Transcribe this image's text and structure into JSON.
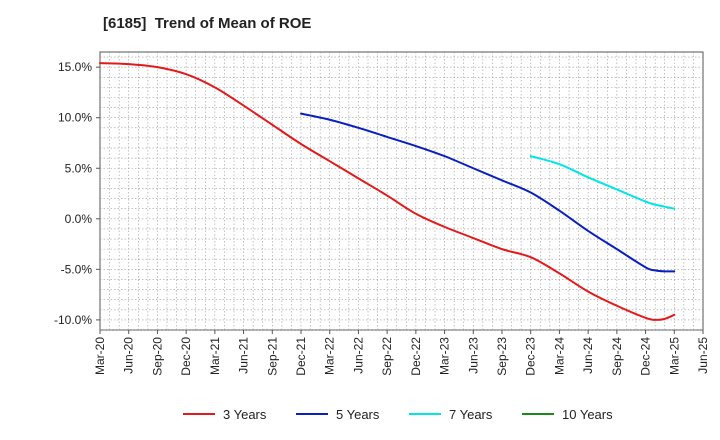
{
  "chart_data": {
    "type": "line",
    "title": "[6185]  Trend of Mean of ROE",
    "xlabel": "",
    "ylabel": "",
    "x_ticks": [
      "Mar-20",
      "Jun-20",
      "Sep-20",
      "Dec-20",
      "Mar-21",
      "Jun-21",
      "Sep-21",
      "Dec-21",
      "Mar-22",
      "Jun-22",
      "Sep-22",
      "Dec-22",
      "Mar-23",
      "Jun-23",
      "Sep-23",
      "Dec-23",
      "Mar-24",
      "Jun-24",
      "Sep-24",
      "Dec-24",
      "Mar-25",
      "Jun-25"
    ],
    "y_ticks": [
      -10,
      -5,
      0,
      5,
      10,
      15
    ],
    "y_tick_labels": [
      "-10.0%",
      "-5.0%",
      "0.0%",
      "5.0%",
      "10.0%",
      "15.0%"
    ],
    "ylim": [
      -11,
      16.5
    ],
    "grid": true,
    "legend_position": "bottom",
    "series": [
      {
        "name": "3 Years",
        "color": "#e31a1c",
        "x": [
          "Mar-20",
          "Jun-20",
          "Sep-20",
          "Dec-20",
          "Mar-21",
          "Jun-21",
          "Sep-21",
          "Dec-21",
          "Mar-22",
          "Jun-22",
          "Sep-22",
          "Dec-22",
          "Mar-23",
          "Jun-23",
          "Sep-23",
          "Dec-23",
          "Mar-24",
          "Jun-24",
          "Sep-24",
          "Dec-24",
          "Jan-25",
          "Feb-25",
          "Mar-25"
        ],
        "values": [
          15.4,
          15.3,
          15.0,
          14.3,
          13.0,
          11.2,
          9.3,
          7.4,
          5.7,
          4.0,
          2.3,
          0.5,
          -0.8,
          -1.9,
          -3.0,
          -3.8,
          -5.4,
          -7.2,
          -8.6,
          -9.8,
          -10.0,
          -9.9,
          -9.5
        ]
      },
      {
        "name": "5 Years",
        "color": "#0a1fbf",
        "x": [
          "Dec-21",
          "Mar-22",
          "Jun-22",
          "Sep-22",
          "Dec-22",
          "Mar-23",
          "Jun-23",
          "Sep-23",
          "Dec-23",
          "Mar-24",
          "Jun-24",
          "Sep-24",
          "Dec-24",
          "Jan-25",
          "Feb-25",
          "Mar-25"
        ],
        "values": [
          10.4,
          9.8,
          9.0,
          8.1,
          7.2,
          6.2,
          5.0,
          3.8,
          2.6,
          0.8,
          -1.2,
          -3.0,
          -4.8,
          -5.1,
          -5.2,
          -5.2
        ]
      },
      {
        "name": "7 Years",
        "color": "#00e5e5",
        "x": [
          "Dec-23",
          "Mar-24",
          "Jun-24",
          "Sep-24",
          "Dec-24",
          "Jan-25",
          "Feb-25",
          "Mar-25"
        ],
        "values": [
          6.2,
          5.4,
          4.1,
          2.9,
          1.7,
          1.4,
          1.2,
          1.0
        ]
      },
      {
        "name": "10 Years",
        "color": "#1a8a1a",
        "x": [],
        "values": []
      }
    ]
  }
}
